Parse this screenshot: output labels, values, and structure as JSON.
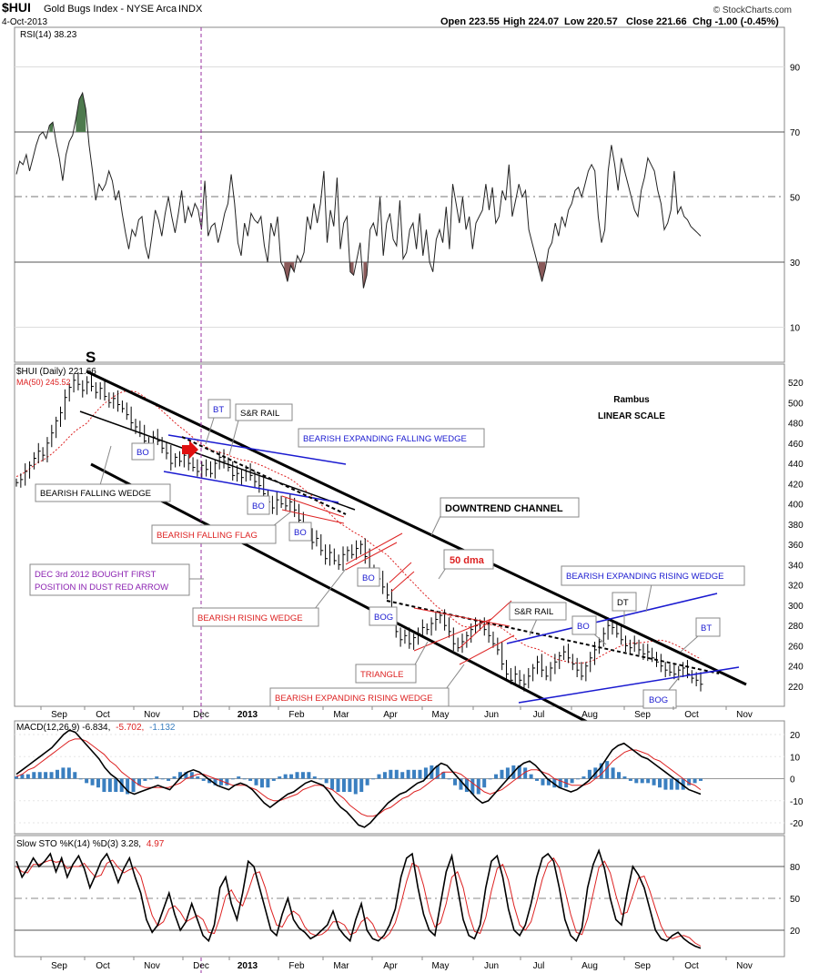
{
  "header": {
    "symbol": "$HUI",
    "name": "Gold Bugs Index - NYSE Arca",
    "exchange": "INDX",
    "date": "4-Oct-2013",
    "open": "Open 223.55",
    "high": "High 224.07",
    "low": "Low 220.57",
    "close": "Close 221.66",
    "change": "Chg -1.00 (-0.45%)",
    "copyright": "© StockCharts.com"
  },
  "rsi": {
    "label": "RSI(14) 38.23",
    "ticks": [
      "90",
      "70",
      "50",
      "30",
      "10"
    ],
    "overbought": 70,
    "oversold": 30,
    "values": [
      57,
      61,
      60,
      63,
      58,
      62,
      66,
      69,
      70,
      68,
      72,
      73,
      67,
      62,
      55,
      63,
      67,
      69,
      74,
      80,
      82,
      77,
      66,
      58,
      49,
      54,
      52,
      54,
      58,
      55,
      49,
      52,
      45,
      39,
      34,
      40,
      38,
      43,
      44,
      35,
      31,
      38,
      46,
      43,
      38,
      45,
      50,
      44,
      39,
      45,
      52,
      42,
      47,
      44,
      48,
      46,
      40,
      55,
      38,
      41,
      42,
      36,
      40,
      45,
      48,
      57,
      48,
      36,
      32,
      42,
      38,
      45,
      43,
      42,
      44,
      35,
      30,
      42,
      38,
      44,
      30,
      28,
      24,
      29,
      27,
      32,
      30,
      33,
      44,
      40,
      48,
      42,
      48,
      58,
      36,
      46,
      41,
      56,
      34,
      42,
      44,
      27,
      26,
      31,
      36,
      22,
      26,
      40,
      42,
      38,
      50,
      32,
      42,
      45,
      37,
      35,
      49,
      31,
      33,
      40,
      42,
      34,
      45,
      32,
      40,
      30,
      27,
      37,
      40,
      36,
      47,
      34,
      54,
      48,
      42,
      50,
      40,
      44,
      34,
      42,
      44,
      46,
      54,
      46,
      53,
      42,
      44,
      52,
      49,
      60,
      44,
      49,
      54,
      50,
      52,
      40,
      36,
      32,
      28,
      24,
      28,
      34,
      36,
      42,
      38,
      44,
      41,
      46,
      48,
      52,
      53,
      50,
      54,
      58,
      60,
      58,
      44,
      36,
      40,
      58,
      66,
      60,
      52,
      62,
      58,
      54,
      50,
      46,
      44,
      52,
      56,
      62,
      60,
      58,
      52,
      48,
      40,
      42,
      46,
      58,
      45,
      47,
      44,
      43,
      41,
      40,
      39,
      38
    ]
  },
  "price": {
    "label": "$HUI (Daily) 221.66",
    "ma_label": "MA(50) 245.52",
    "ticks": [
      "520",
      "500",
      "480",
      "460",
      "440",
      "420",
      "400",
      "380",
      "360",
      "340",
      "320",
      "300",
      "280",
      "260",
      "240",
      "220"
    ],
    "months": [
      "Sep",
      "Oct",
      "Nov",
      "Dec",
      "2013",
      "Feb",
      "Mar",
      "Apr",
      "May",
      "Jun",
      "Jul",
      "Aug",
      "Sep",
      "Oct",
      "Nov"
    ],
    "close_values": [
      421,
      424,
      432,
      438,
      445,
      452,
      448,
      460,
      470,
      482,
      490,
      505,
      515,
      522,
      518,
      512,
      520,
      516,
      510,
      514,
      506,
      500,
      504,
      498,
      494,
      488,
      480,
      476,
      470,
      462,
      458,
      466,
      462,
      455,
      450,
      440,
      446,
      442,
      448,
      440,
      436,
      432,
      438,
      434,
      430,
      440,
      446,
      442,
      436,
      428,
      430,
      426,
      432,
      428,
      422,
      418,
      410,
      402,
      396,
      404,
      400,
      398,
      402,
      394,
      384,
      378,
      370,
      362,
      366,
      354,
      346,
      352,
      344,
      340,
      350,
      354,
      350,
      356,
      360,
      348,
      336,
      330,
      326,
      318,
      310,
      290,
      274,
      266,
      270,
      262,
      268,
      272,
      278,
      276,
      282,
      286,
      290,
      280,
      274,
      262,
      258,
      264,
      270,
      276,
      280,
      282,
      276,
      270,
      262,
      256,
      242,
      232,
      226,
      232,
      226,
      222,
      230,
      238,
      244,
      236,
      230,
      238,
      244,
      250,
      254,
      248,
      242,
      236,
      230,
      240,
      248,
      256,
      264,
      272,
      280,
      278,
      272,
      266,
      260,
      258,
      262,
      256,
      252,
      254,
      248,
      244,
      240,
      236,
      234,
      232,
      236,
      238,
      232,
      228,
      226,
      222
    ]
  },
  "annotations": {
    "s_label": "S",
    "rambus": "Rambus",
    "linear_scale": "LINEAR SCALE",
    "bearish_falling_wedge": "BEARISH FALLING WEDGE",
    "bo_1": "BO",
    "bt_1": "BT",
    "sr_rail_1": "S&R RAIL",
    "bearish_expanding_falling_wedge": "BEARISH EXPANDING FALLING WEDGE",
    "bo_2": "BO",
    "bo_3": "BO",
    "downtrend_channel": "DOWNTREND CHANNEL",
    "bearish_falling_flag": "BEARISH FALLING FLAG",
    "fifty_dma": "50 dma",
    "bo_4": "BO",
    "dec_note_line1": "DEC 3rd 2012 BOUGHT FIRST",
    "dec_note_line2": "POSITION IN DUST RED ARROW",
    "bog_1": "BOG",
    "bearish_rising_wedge": "BEARISH RISING WEDGE",
    "sr_rail_2": "S&R RAIL",
    "bearish_expanding_rising_wedge_top": "BEARISH EXPANDING RISING WEDGE",
    "dt": "DT",
    "bo_5": "BO",
    "bt_2": "BT",
    "triangle": "TRIANGLE",
    "bearish_expanding_rising_wedge_bottom": "BEARISH EXPANDING RISING WEDGE",
    "bog_2": "BOG"
  },
  "macd": {
    "label_main": "MACD(12,26,9) -6.834,",
    "label_signal": "-5.702,",
    "label_hist": "-1.132",
    "ticks": [
      "20",
      "10",
      "0",
      "-10",
      "-20"
    ],
    "macd_values": [
      2,
      4,
      6,
      8,
      10,
      12,
      14,
      17,
      20,
      22,
      21,
      18,
      15,
      12,
      9,
      5,
      2,
      0,
      -3,
      -6,
      -7,
      -6,
      -5,
      -4,
      -3,
      -4,
      -5,
      -2,
      1,
      3,
      4,
      3,
      1,
      -1,
      -3,
      -4,
      -5,
      -3,
      -2,
      -3,
      -5,
      -8,
      -11,
      -13,
      -11,
      -9,
      -7,
      -6,
      -4,
      -2,
      -1,
      -2,
      -3,
      -6,
      -10,
      -13,
      -15,
      -18,
      -21,
      -22,
      -20,
      -17,
      -14,
      -11,
      -9,
      -7,
      -6,
      -4,
      -2,
      -1,
      2,
      5,
      7,
      6,
      3,
      0,
      -3,
      -6,
      -9,
      -11,
      -10,
      -7,
      -4,
      -1,
      2,
      5,
      7,
      8,
      6,
      3,
      0,
      -2,
      -4,
      -5,
      -6,
      -5,
      -3,
      -1,
      2,
      5,
      9,
      13,
      15,
      16,
      14,
      12,
      10,
      9,
      7,
      5,
      3,
      1,
      -1,
      -3,
      -5,
      -6,
      -7
    ],
    "signal_values": [
      1,
      2,
      4,
      5,
      7,
      9,
      11,
      13,
      15,
      17,
      18,
      18,
      17,
      15,
      13,
      11,
      8,
      6,
      3,
      1,
      -1,
      -3,
      -4,
      -4,
      -4,
      -4,
      -4,
      -3,
      -2,
      0,
      1,
      2,
      2,
      1,
      0,
      -1,
      -2,
      -3,
      -3,
      -3,
      -4,
      -5,
      -7,
      -9,
      -10,
      -10,
      -9,
      -8,
      -7,
      -5,
      -4,
      -3,
      -3,
      -4,
      -5,
      -7,
      -9,
      -12,
      -14,
      -16,
      -17,
      -17,
      -16,
      -14,
      -13,
      -11,
      -9,
      -8,
      -6,
      -5,
      -3,
      -1,
      1,
      3,
      3,
      3,
      2,
      0,
      -2,
      -4,
      -6,
      -7,
      -6,
      -5,
      -3,
      -1,
      1,
      3,
      4,
      4,
      3,
      2,
      0,
      -1,
      -2,
      -3,
      -3,
      -3,
      -2,
      0,
      2,
      5,
      8,
      10,
      12,
      13,
      13,
      12,
      11,
      9,
      8,
      6,
      4,
      2,
      0,
      -2,
      -3,
      -5
    ],
    "histogram": [
      1,
      2,
      2,
      3,
      3,
      3,
      3,
      4,
      5,
      5,
      3,
      0,
      -2,
      -3,
      -4,
      -6,
      -6,
      -6,
      -6,
      -7,
      -6,
      -3,
      -1,
      0,
      1,
      0,
      -1,
      1,
      3,
      3,
      3,
      1,
      -1,
      -2,
      -3,
      -3,
      -3,
      0,
      1,
      0,
      -1,
      -3,
      -4,
      -4,
      -1,
      1,
      2,
      2,
      3,
      3,
      3,
      1,
      0,
      -2,
      -5,
      -6,
      -6,
      -6,
      -7,
      -6,
      -3,
      0,
      2,
      3,
      4,
      4,
      3,
      4,
      4,
      4,
      5,
      6,
      6,
      3,
      0,
      -3,
      -5,
      -6,
      -7,
      -7,
      -4,
      0,
      2,
      4,
      5,
      6,
      6,
      5,
      2,
      -1,
      -3,
      -3,
      -4,
      -4,
      -4,
      -2,
      0,
      1,
      4,
      5,
      7,
      8,
      5,
      3,
      1,
      -1,
      -2,
      -2,
      -2,
      -3,
      -4,
      -5,
      -5,
      -5,
      -5,
      -3,
      -2,
      -1
    ]
  },
  "sto": {
    "label_main": "Slow STO %K(14) %D(3) 3.28,",
    "label_d": "4.97",
    "ticks": [
      "80",
      "50",
      "20"
    ],
    "k_values": [
      85,
      70,
      78,
      88,
      80,
      85,
      92,
      75,
      88,
      70,
      82,
      90,
      78,
      60,
      72,
      85,
      92,
      80,
      65,
      78,
      88,
      70,
      55,
      30,
      18,
      25,
      40,
      55,
      35,
      20,
      28,
      45,
      30,
      15,
      10,
      25,
      60,
      70,
      45,
      30,
      55,
      85,
      80,
      60,
      40,
      20,
      15,
      35,
      50,
      30,
      22,
      18,
      12,
      15,
      20,
      25,
      38,
      22,
      15,
      10,
      30,
      45,
      20,
      12,
      10,
      15,
      25,
      40,
      70,
      88,
      92,
      60,
      35,
      20,
      15,
      45,
      75,
      90,
      60,
      30,
      15,
      12,
      25,
      60,
      85,
      90,
      70,
      40,
      20,
      15,
      25,
      45,
      70,
      88,
      92,
      85,
      60,
      30,
      15,
      10,
      22,
      60,
      82,
      95,
      78,
      50,
      30,
      25,
      55,
      80,
      72,
      60,
      40,
      20,
      12,
      10,
      15,
      18,
      12,
      8,
      5,
      3
    ],
    "d_values": [
      80,
      75,
      74,
      82,
      82,
      84,
      86,
      84,
      85,
      78,
      80,
      80,
      83,
      76,
      70,
      72,
      83,
      86,
      79,
      74,
      77,
      79,
      71,
      52,
      34,
      24,
      28,
      40,
      43,
      37,
      28,
      31,
      34,
      30,
      18,
      17,
      32,
      52,
      58,
      48,
      43,
      57,
      73,
      75,
      60,
      40,
      25,
      23,
      33,
      38,
      34,
      23,
      17,
      15,
      16,
      20,
      28,
      28,
      25,
      16,
      18,
      28,
      32,
      26,
      14,
      12,
      17,
      27,
      45,
      66,
      83,
      80,
      62,
      38,
      23,
      27,
      45,
      70,
      75,
      60,
      35,
      19,
      17,
      32,
      57,
      78,
      82,
      67,
      43,
      25,
      20,
      28,
      47,
      68,
      83,
      88,
      79,
      58,
      35,
      18,
      16,
      31,
      55,
      79,
      85,
      74,
      53,
      35,
      37,
      53,
      69,
      71,
      57,
      40,
      24,
      14,
      12,
      14,
      15,
      13,
      8,
      5
    ]
  }
}
